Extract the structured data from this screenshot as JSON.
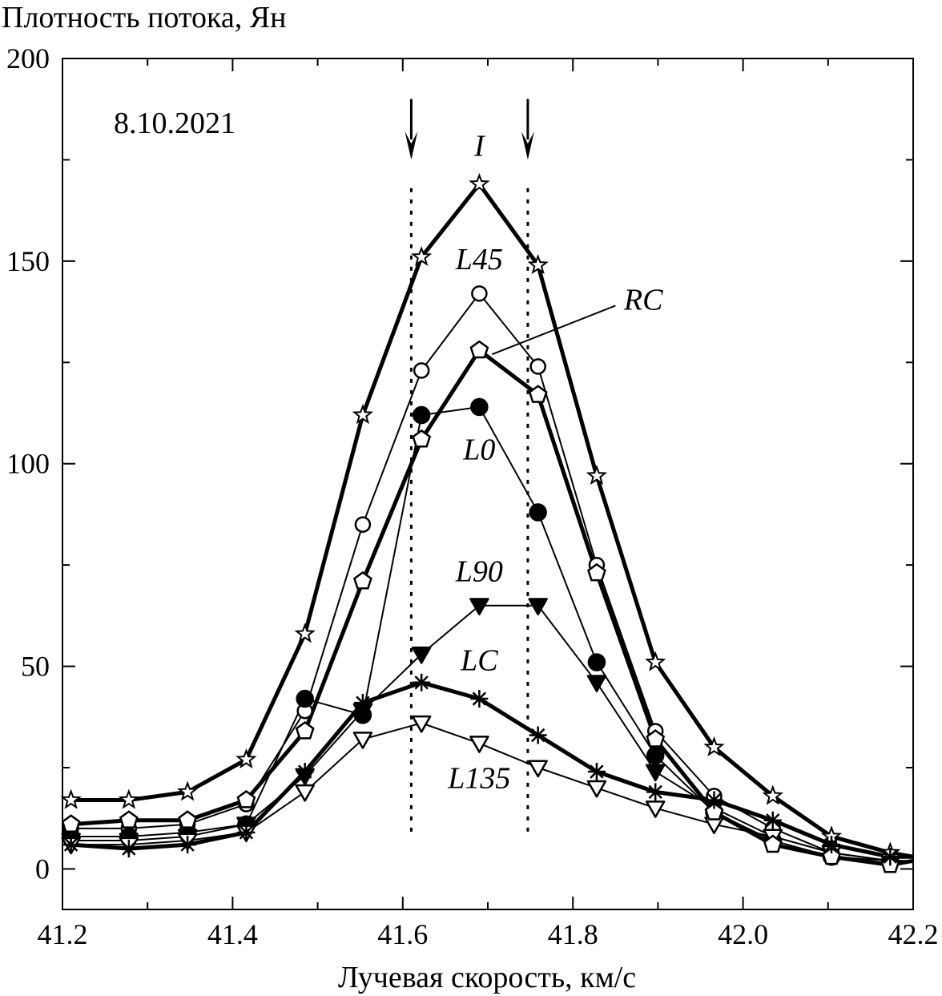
{
  "chart_data": {
    "type": "line",
    "ylabel": "Плотность потока, Ян",
    "xlabel": "Лучевая скорость, км/с",
    "annotation": "8.10.2021",
    "xlim": [
      41.2,
      42.2
    ],
    "ylim": [
      -10,
      200
    ],
    "x_ticks": [
      "41.2",
      "41.4",
      "41.6",
      "41.8",
      "42.0",
      "42.2"
    ],
    "y_ticks": [
      "0",
      "50",
      "100",
      "150",
      "200"
    ],
    "x": [
      41.21,
      41.278,
      41.347,
      41.416,
      41.485,
      41.553,
      41.622,
      41.69,
      41.759,
      41.828,
      41.897,
      41.966,
      42.035,
      42.104,
      42.173,
      42.2
    ],
    "markers_x": [
      41.61,
      41.747
    ],
    "series": [
      {
        "name": "I",
        "marker": "star",
        "bold": true,
        "values": [
          17,
          17,
          19,
          27,
          58,
          112,
          151,
          169,
          149,
          97,
          51,
          30,
          18,
          8,
          4,
          3
        ]
      },
      {
        "name": "L45",
        "marker": "circle-open",
        "bold": false,
        "values": [
          10,
          10,
          11,
          16,
          39,
          85,
          123,
          142,
          124,
          75,
          34,
          18,
          10,
          4,
          2,
          2
        ]
      },
      {
        "name": "RC",
        "marker": "pentagon-open",
        "bold": true,
        "values": [
          11,
          12,
          12,
          17,
          34,
          71,
          106,
          128,
          117,
          73,
          32,
          14,
          6,
          3,
          1,
          2
        ]
      },
      {
        "name": "L0",
        "marker": "circle-filled",
        "bold": false,
        "values": [
          8,
          8,
          9,
          11,
          42,
          38,
          112,
          114,
          88,
          51,
          28,
          14,
          7,
          3,
          2,
          2
        ]
      },
      {
        "name": "L90",
        "marker": "triangle-down-filled",
        "bold": false,
        "values": [
          7,
          7,
          8,
          11,
          23,
          39,
          53,
          65,
          65,
          46,
          24,
          15,
          8,
          4,
          2,
          2
        ]
      },
      {
        "name": "LC",
        "marker": "asterisk",
        "bold": true,
        "values": [
          6,
          5,
          6,
          9,
          24,
          41,
          46,
          42,
          33,
          24,
          19,
          17,
          12,
          6,
          3,
          3
        ]
      },
      {
        "name": "L135",
        "marker": "triangle-down-open",
        "bold": false,
        "values": [
          6,
          6,
          7,
          9,
          19,
          32,
          36,
          31,
          25,
          20,
          15,
          11,
          8,
          4,
          2,
          2
        ]
      }
    ],
    "labels": [
      {
        "text": "I",
        "x": 41.69,
        "y": 176
      },
      {
        "text": "L45",
        "x": 41.69,
        "y": 148
      },
      {
        "text": "RC",
        "x": 41.86,
        "y": 138
      },
      {
        "text": "L0",
        "x": 41.69,
        "y": 101
      },
      {
        "text": "L90",
        "x": 41.69,
        "y": 71
      },
      {
        "text": "LC",
        "x": 41.69,
        "y": 49
      },
      {
        "text": "L135",
        "x": 41.69,
        "y": 20
      }
    ]
  }
}
